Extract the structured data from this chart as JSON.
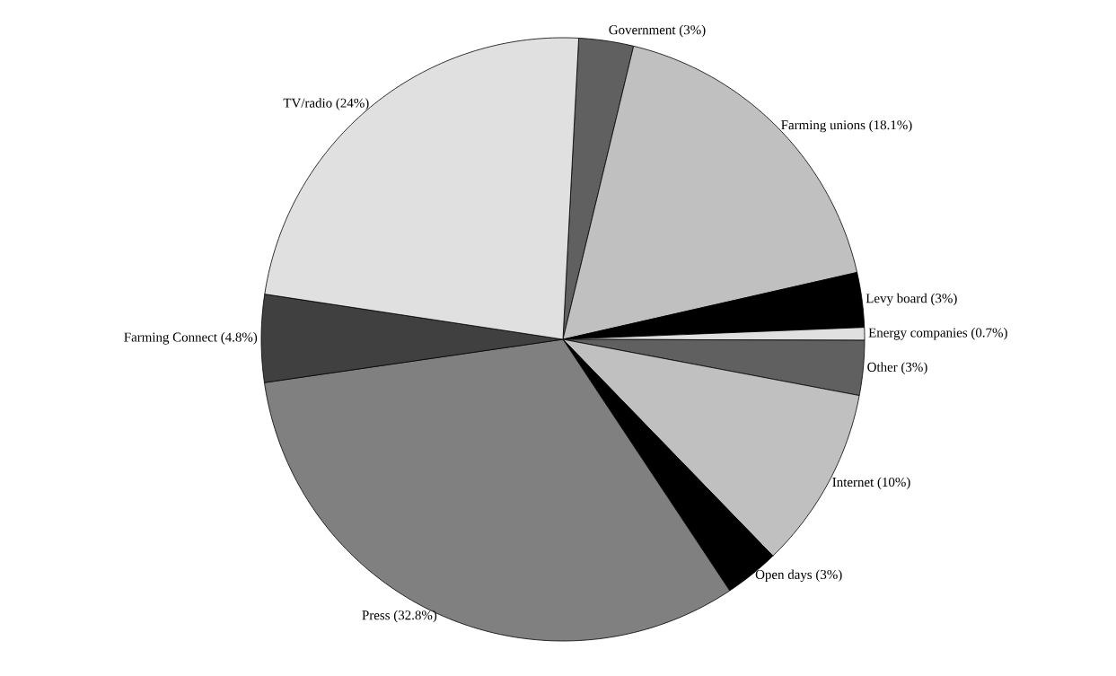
{
  "chart_data": {
    "type": "pie",
    "categories": [
      "Government (3%)",
      "Farming unions (18.1%)",
      "Levy board (3%)",
      "Energy companies (0.7%)",
      "Other (3%)",
      "Internet (10%)",
      "Open days (3%)",
      "Press (32.8%)",
      "Farming Connect (4.8%)",
      "TV/radio (24%)"
    ],
    "values": [
      3,
      18.1,
      3,
      0.7,
      3,
      10,
      3,
      32.8,
      4.8,
      24
    ],
    "colors": [
      "#606060",
      "#c0c0c0",
      "#000000",
      "#e0e0e0",
      "#606060",
      "#c0c0c0",
      "#000000",
      "#808080",
      "#404040",
      "#e0e0e0"
    ]
  }
}
